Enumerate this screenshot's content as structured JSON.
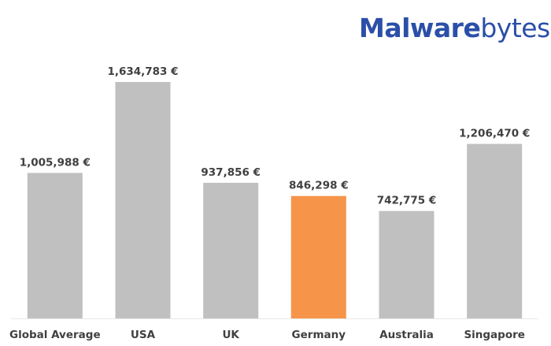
{
  "brand": {
    "logo_text_bold": "Malware",
    "logo_text_light": "bytes",
    "color": "#2b4fa8"
  },
  "chart_data": {
    "type": "bar",
    "title": "",
    "xlabel": "",
    "ylabel": "",
    "categories": [
      "Global Average",
      "USA",
      "UK",
      "Germany",
      "Australia",
      "Singapore"
    ],
    "values": [
      1005988,
      1634783,
      937856,
      846298,
      742775,
      1206470
    ],
    "data_labels": [
      "1,005,988 €",
      "1,634,783 €",
      "937,856 €",
      "846,298 €",
      "742,775 €",
      "1,206,470 €"
    ],
    "ylim": [
      0,
      1634783
    ],
    "grid": false,
    "legend": "none",
    "colors": {
      "default": "#c0c0c0",
      "highlight": "#f6944a",
      "label": "#404040",
      "baseline": "#e8e8e8"
    },
    "highlight_category": "Germany"
  }
}
